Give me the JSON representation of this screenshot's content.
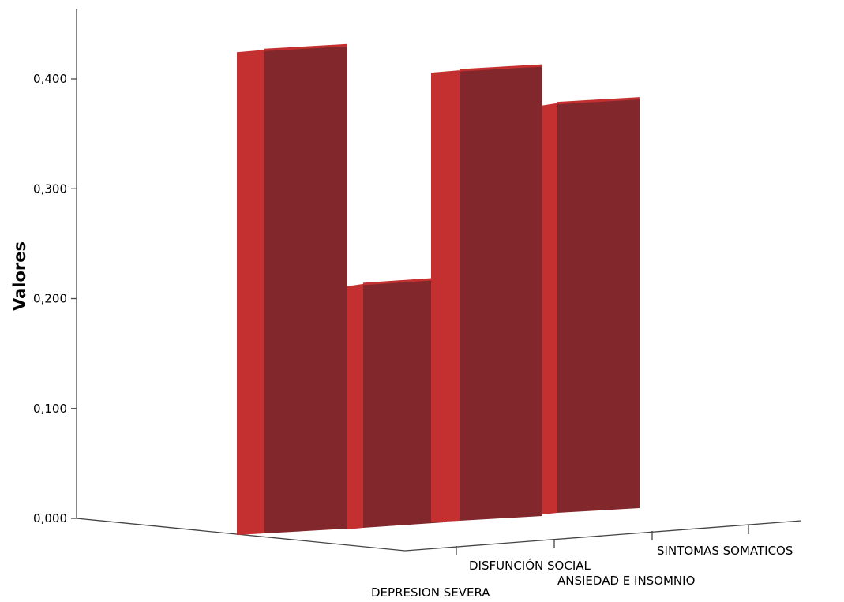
{
  "colors": {
    "bar_front": "#82282C",
    "bar_side": "#C4302F",
    "axis": "#444444",
    "text": "#000000"
  },
  "chart_data": {
    "type": "bar",
    "view": "3d",
    "ylabel": "Valores",
    "xlabel": "",
    "title": "",
    "categories": [
      "DEPRESION SEVERA",
      "DISFUNCIÓN SOCIAL",
      "ANSIEDAD E INSOMNIO",
      "SINTOMAS SOMATICOS"
    ],
    "values": [
      0.44,
      0.222,
      0.41,
      0.373
    ],
    "ylim": [
      0,
      0.45
    ],
    "yticks": [
      "0,000",
      "0,100",
      "0,200",
      "0,300",
      "0,400"
    ],
    "ytick_values": [
      0,
      0.1,
      0.2,
      0.3,
      0.4
    ],
    "legend": "none",
    "grid": false
  }
}
